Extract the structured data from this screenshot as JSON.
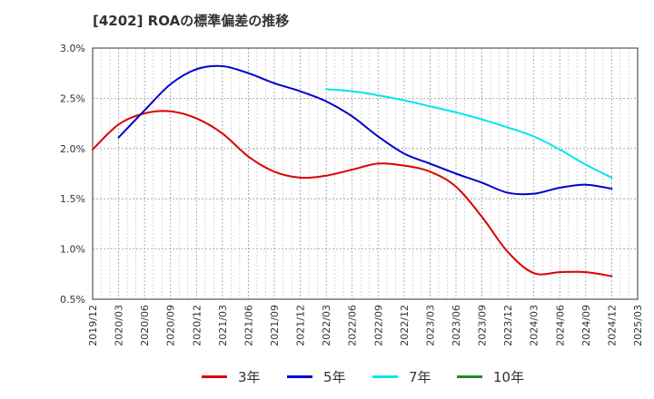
{
  "title": "[4202]  ROAの標準偏差の推移",
  "chart_data": {
    "type": "line",
    "title": "[4202]  ROAの標準偏差の推移",
    "xlabel": "",
    "ylabel": "",
    "y_ticks": [
      "0.5%",
      "1.0%",
      "1.5%",
      "2.0%",
      "2.5%",
      "3.0%"
    ],
    "ylim": [
      0.5,
      3.0
    ],
    "x_ticks": [
      "2019/12",
      "2020/03",
      "2020/06",
      "2020/09",
      "2020/12",
      "2021/03",
      "2021/06",
      "2021/09",
      "2021/12",
      "2022/03",
      "2022/06",
      "2022/09",
      "2022/12",
      "2023/03",
      "2023/06",
      "2023/09",
      "2023/12",
      "2024/03",
      "2024/06",
      "2024/09",
      "2024/12",
      "2025/03"
    ],
    "grid": true,
    "legend_position": "bottom",
    "series": [
      {
        "name": "3年",
        "color": "#dd0000",
        "x": [
          "2019/12",
          "2020/03",
          "2020/06",
          "2020/09",
          "2020/12",
          "2021/03",
          "2021/06",
          "2021/09",
          "2021/12",
          "2022/03",
          "2022/06",
          "2022/09",
          "2022/12",
          "2023/03",
          "2023/06",
          "2023/09",
          "2023/12",
          "2024/03",
          "2024/06",
          "2024/09",
          "2024/12"
        ],
        "values": [
          1.99,
          2.24,
          2.35,
          2.37,
          2.3,
          2.15,
          1.92,
          1.77,
          1.71,
          1.73,
          1.79,
          1.85,
          1.83,
          1.77,
          1.62,
          1.32,
          0.97,
          0.76,
          0.77,
          0.77,
          0.73
        ]
      },
      {
        "name": "5年",
        "color": "#0000cc",
        "x": [
          "2020/03",
          "2020/06",
          "2020/09",
          "2020/12",
          "2021/03",
          "2021/06",
          "2021/09",
          "2021/12",
          "2022/03",
          "2022/06",
          "2022/09",
          "2022/12",
          "2023/03",
          "2023/06",
          "2023/09",
          "2023/12",
          "2024/03",
          "2024/06",
          "2024/09",
          "2024/12"
        ],
        "values": [
          2.11,
          2.38,
          2.64,
          2.79,
          2.82,
          2.75,
          2.65,
          2.57,
          2.47,
          2.32,
          2.12,
          1.95,
          1.85,
          1.75,
          1.66,
          1.56,
          1.55,
          1.61,
          1.64,
          1.6
        ]
      },
      {
        "name": "7年",
        "color": "#00e5ee",
        "x": [
          "2022/03",
          "2022/06",
          "2022/09",
          "2022/12",
          "2023/03",
          "2023/06",
          "2023/09",
          "2023/12",
          "2024/03",
          "2024/06",
          "2024/09",
          "2024/12"
        ],
        "values": [
          2.59,
          2.57,
          2.53,
          2.48,
          2.42,
          2.36,
          2.29,
          2.21,
          2.12,
          1.99,
          1.84,
          1.71
        ]
      },
      {
        "name": "10年",
        "color": "#228b22",
        "x": [],
        "values": []
      }
    ]
  }
}
